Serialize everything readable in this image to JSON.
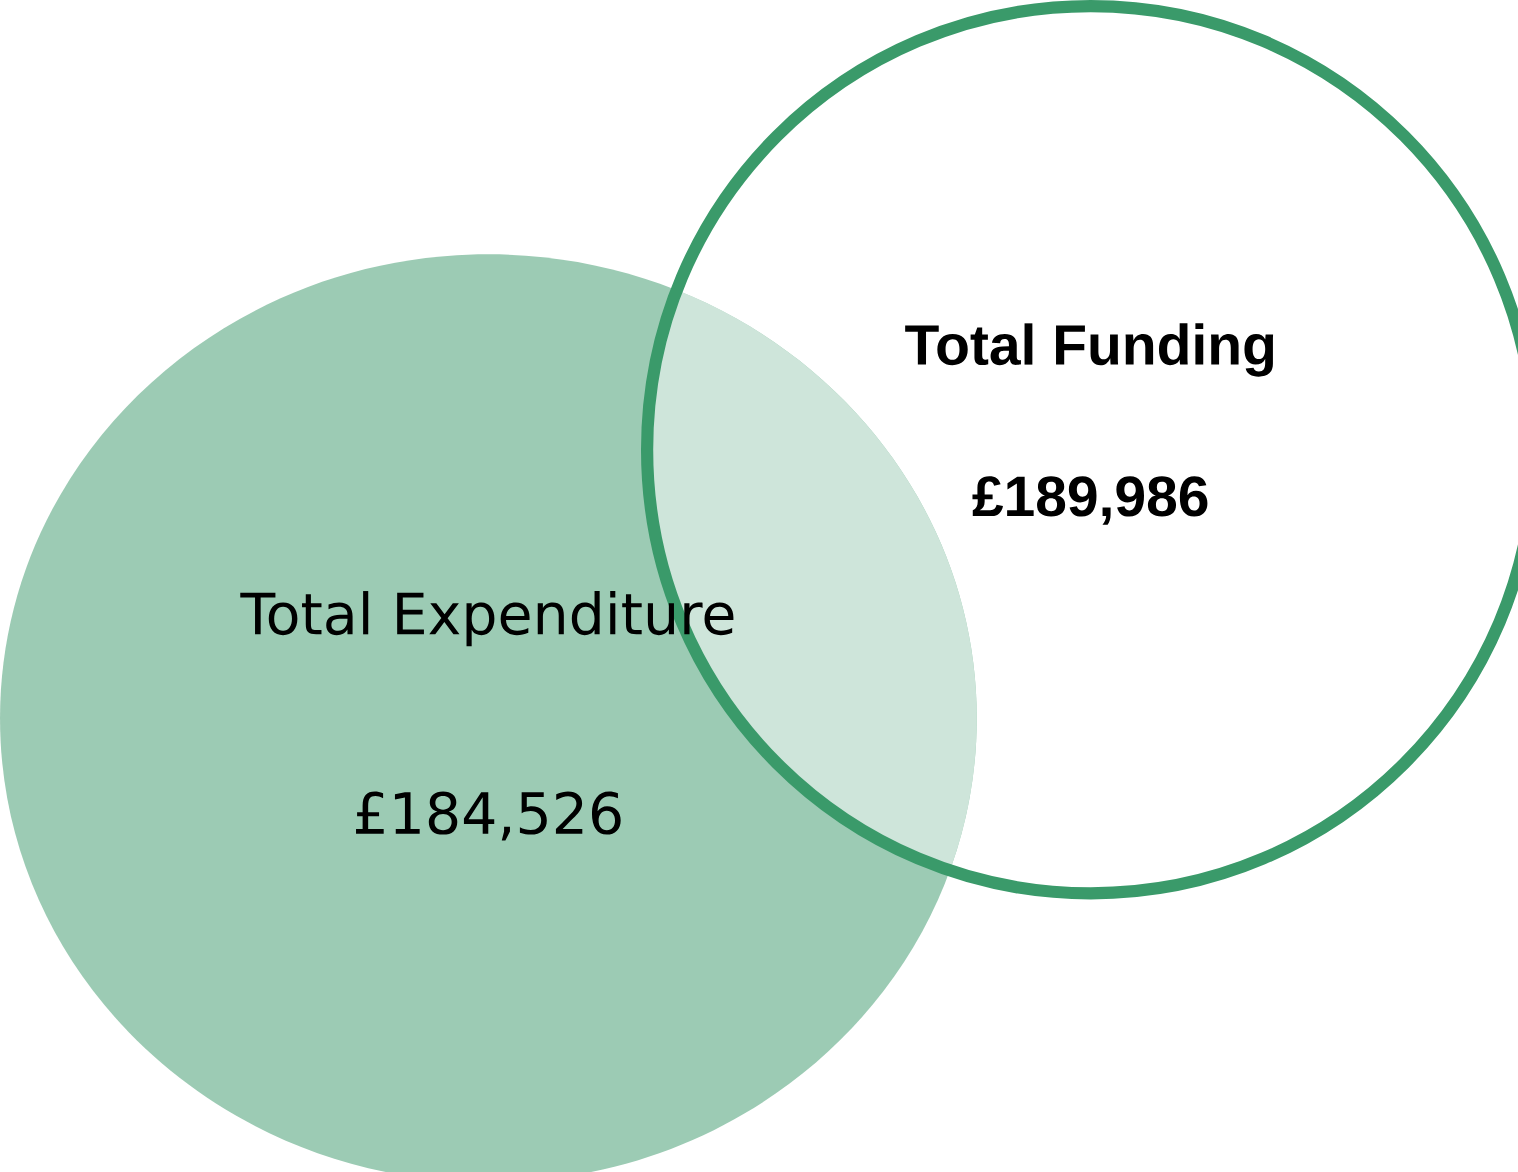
{
  "chart_data": {
    "type": "other",
    "categories": [
      "Total Expenditure",
      "Total Funding"
    ],
    "values": [
      184526,
      189986
    ],
    "value_labels": [
      "£184,526",
      "£189,986"
    ],
    "colors": [
      "#9ccbb4",
      "#3a9a6a"
    ]
  }
}
